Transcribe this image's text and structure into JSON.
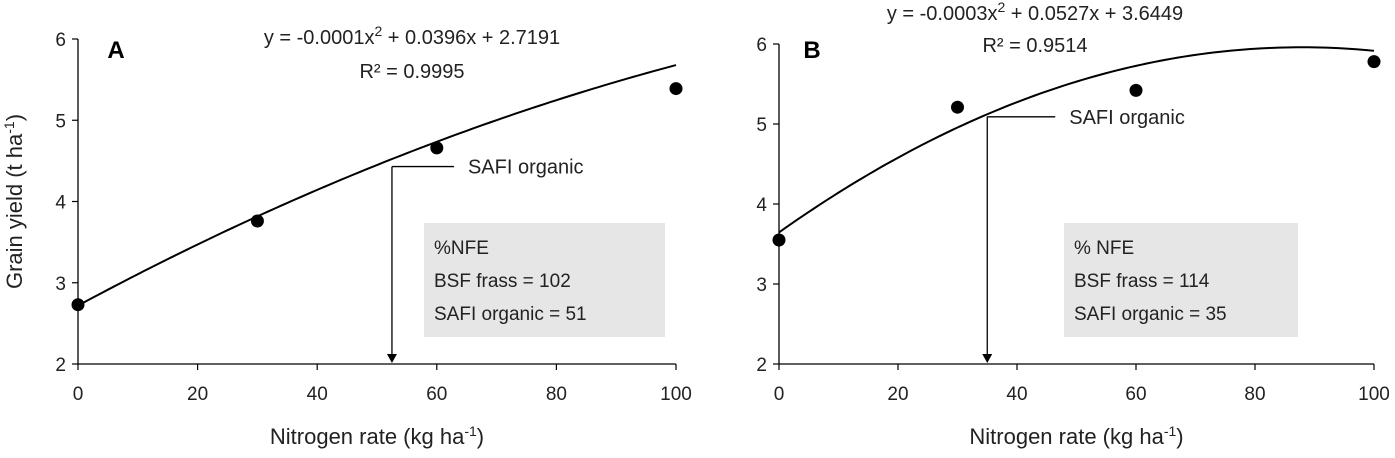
{
  "chart_data": [
    {
      "type": "scatter",
      "panel_label": "A",
      "xlabel_main": "Nitrogen rate (kg ha",
      "xlabel_sup": "-1",
      "xlabel_end": ")",
      "ylabel_main": "Grain yield (t ha",
      "ylabel_sup": "-1",
      "ylabel_end": ")",
      "xlim": [
        0,
        100
      ],
      "ylim": [
        2,
        6
      ],
      "x_ticks": [
        "0",
        "20",
        "40",
        "60",
        "80",
        "100"
      ],
      "y_ticks": [
        "2",
        "3",
        "4",
        "5",
        "6"
      ],
      "points": [
        {
          "x": 0,
          "y": 2.73
        },
        {
          "x": 30,
          "y": 3.76
        },
        {
          "x": 60,
          "y": 4.66
        },
        {
          "x": 100,
          "y": 5.39
        }
      ],
      "fit": {
        "a": -0.0001,
        "b": 0.0396,
        "c": 2.7191
      },
      "equation_parts": [
        "y = -0.0001x",
        "2",
        " + 0.0396x + 2.7191"
      ],
      "r2_text": "R² = 0.9995",
      "annotation": {
        "label": "SAFI organic",
        "x": 52.5,
        "y": 4.43
      },
      "box_lines": [
        "%NFE",
        "BSF frass = 102",
        "SAFI organic = 51"
      ],
      "grid": false,
      "legend": "none"
    },
    {
      "type": "scatter",
      "panel_label": "B",
      "xlabel_main": "Nitrogen rate (kg ha",
      "xlabel_sup": "-1",
      "xlabel_end": ")",
      "ylabel_main": "",
      "ylabel_sup": "",
      "ylabel_end": "",
      "xlim": [
        0,
        100
      ],
      "ylim": [
        2,
        6
      ],
      "x_ticks": [
        "0",
        "20",
        "40",
        "60",
        "80",
        "100"
      ],
      "y_ticks": [
        "2",
        "3",
        "4",
        "5",
        "6"
      ],
      "points": [
        {
          "x": 0,
          "y": 3.55
        },
        {
          "x": 30,
          "y": 5.21
        },
        {
          "x": 60,
          "y": 5.42
        },
        {
          "x": 100,
          "y": 5.78
        }
      ],
      "fit": {
        "a": -0.0003,
        "b": 0.0527,
        "c": 3.6449
      },
      "equation_parts": [
        "y = -0.0003x",
        "2",
        " + 0.0527x + 3.6449"
      ],
      "r2_text": "R² = 0.9514",
      "annotation": {
        "label": "SAFI organic",
        "x": 35,
        "y": 5.09
      },
      "box_lines": [
        "% NFE",
        "BSF frass = 114",
        "SAFI organic = 35"
      ],
      "grid": false,
      "legend": "none"
    }
  ]
}
